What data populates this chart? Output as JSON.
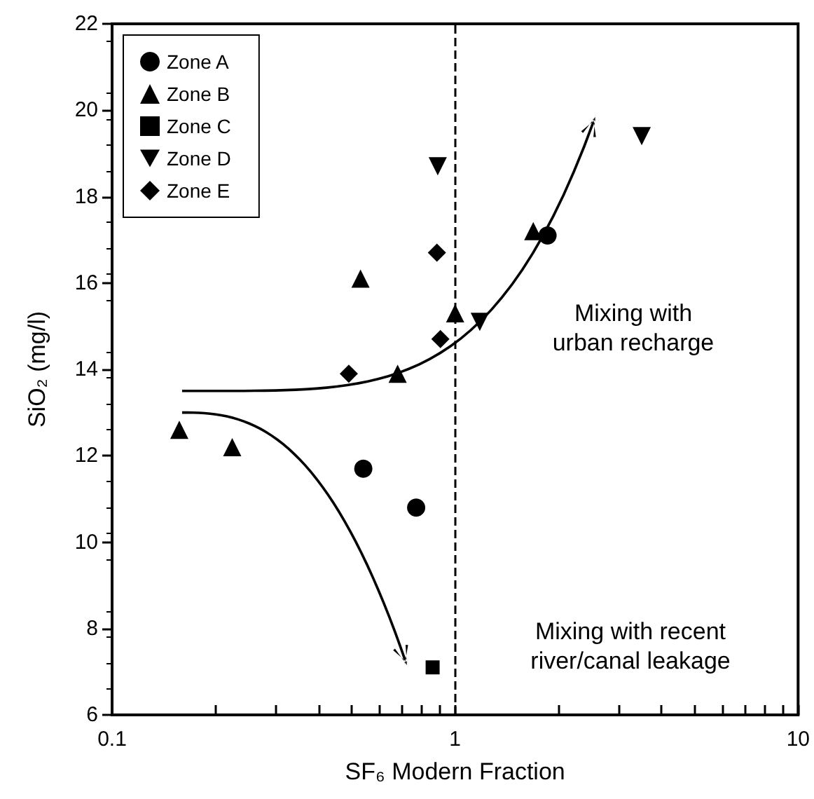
{
  "chart_data": {
    "type": "scatter",
    "xlabel": "SF₆ Modern Fraction",
    "ylabel": "SiO₂ (mg/l)",
    "log": "x",
    "xlim": [
      0.1,
      10
    ],
    "ylim": [
      6,
      22
    ],
    "xticks": [
      0.1,
      {
        "value": 0.2,
        "label": null
      },
      {
        "value": 0.3,
        "label": null
      },
      {
        "value": 0.4,
        "label": null
      },
      {
        "value": 0.5,
        "label": null
      },
      {
        "value": 0.6,
        "label": null
      },
      {
        "value": 0.7,
        "label": null
      },
      {
        "value": 0.8,
        "label": null
      },
      {
        "value": 0.9,
        "label": null
      },
      1,
      {
        "value": 2,
        "label": null
      },
      {
        "value": 3,
        "label": null
      },
      {
        "value": 4,
        "label": null
      },
      {
        "value": 5,
        "label": null
      },
      {
        "value": 6,
        "label": null
      },
      {
        "value": 7,
        "label": null
      },
      {
        "value": 8,
        "label": null
      },
      {
        "value": 9,
        "label": null
      },
      10
    ],
    "yticks": [
      6,
      8,
      10,
      12,
      14,
      16,
      18,
      20,
      22
    ],
    "grid": false,
    "legend": "top left",
    "series": [
      {
        "name": "Zone A",
        "color": "#000000",
        "marker": "circle",
        "x": [
          1.86,
          0.54,
          0.77
        ],
        "values": [
          17.1,
          11.7,
          10.8
        ]
      },
      {
        "name": "Zone B",
        "color": "#000000",
        "marker": "triangle",
        "x": [
          1.69,
          0.53,
          1.0,
          0.68,
          0.157,
          0.224
        ],
        "values": [
          17.2,
          16.1,
          15.3,
          13.9,
          12.6,
          12.2
        ]
      },
      {
        "name": "Zone C",
        "color": "#000000",
        "marker": "square",
        "x": [
          0.86
        ],
        "values": [
          7.1
        ]
      },
      {
        "name": "Zone D",
        "color": "#000000",
        "marker": "triangle-down",
        "x": [
          0.89,
          3.5,
          1.18
        ],
        "values": [
          18.7,
          19.4,
          15.1
        ]
      },
      {
        "name": "Zone E",
        "color": "#000000",
        "marker": "diamond",
        "x": [
          0.885,
          0.906,
          0.49
        ],
        "values": [
          16.7,
          14.7,
          13.9
        ]
      }
    ],
    "ref_lines": [
      {
        "axis": "x",
        "value": 1,
        "color": "#000000",
        "line_style": "dashed"
      }
    ],
    "annotations": [
      "Mixing with\nurban recharge",
      "Mixing with recent\nriver/canal leakage"
    ]
  }
}
